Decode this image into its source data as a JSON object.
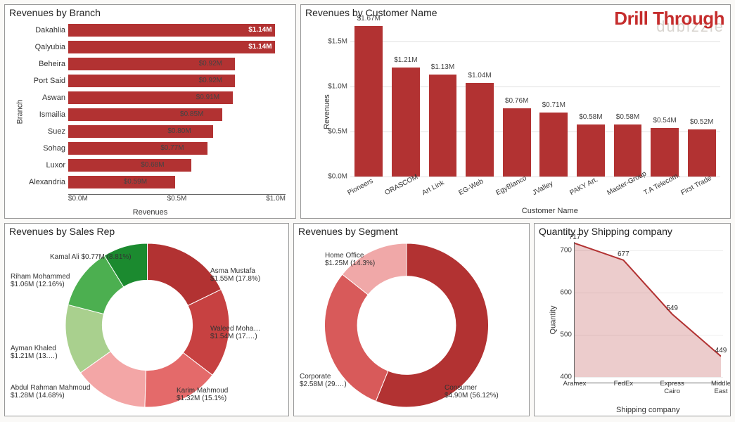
{
  "watermark": {
    "main": "Drill Through",
    "sub": "dubizzle"
  },
  "colors": {
    "bar": "#b23232",
    "panel_border": "#999999",
    "grid": "#e0e0e0",
    "axis": "#666666",
    "text": "#333333"
  },
  "branch_chart": {
    "type": "bar-horizontal",
    "title": "Revenues by Branch",
    "xlabel": "Revenues",
    "ylabel": "Branch",
    "bar_color": "#b23232",
    "value_max_for_scale": 1.2,
    "xticks": [
      "$0.0M",
      "$0.5M",
      "$1.0M"
    ],
    "items": [
      {
        "cat": "Dakahlia",
        "val": 1.14,
        "label": "$1.14M",
        "inside": true
      },
      {
        "cat": "Qalyubia",
        "val": 1.14,
        "label": "$1.14M",
        "inside": true
      },
      {
        "cat": "Beheira",
        "val": 0.92,
        "label": "$0.92M",
        "inside": false
      },
      {
        "cat": "Port Said",
        "val": 0.92,
        "label": "$0.92M",
        "inside": false
      },
      {
        "cat": "Aswan",
        "val": 0.91,
        "label": "$0.91M",
        "inside": false
      },
      {
        "cat": "Ismailia",
        "val": 0.85,
        "label": "$0.85M",
        "inside": false
      },
      {
        "cat": "Suez",
        "val": 0.8,
        "label": "$0.80M",
        "inside": false
      },
      {
        "cat": "Sohag",
        "val": 0.77,
        "label": "$0.77M",
        "inside": false
      },
      {
        "cat": "Luxor",
        "val": 0.68,
        "label": "$0.68M",
        "inside": false
      },
      {
        "cat": "Alexandria",
        "val": 0.59,
        "label": "$0.59M",
        "inside": false
      }
    ]
  },
  "customer_chart": {
    "type": "bar-vertical",
    "title": "Revenues by Customer Name",
    "xlabel": "Customer Name",
    "ylabel": "Revenues",
    "bar_color": "#b23232",
    "ylim": [
      0,
      1.7
    ],
    "yticks": [
      {
        "v": 0.0,
        "label": "$0.0M"
      },
      {
        "v": 0.5,
        "label": "$0.5M"
      },
      {
        "v": 1.0,
        "label": "$1.0M"
      },
      {
        "v": 1.5,
        "label": "$1.5M"
      }
    ],
    "items": [
      {
        "cat": "Pioneers",
        "val": 1.67,
        "label": "$1.67M"
      },
      {
        "cat": "ORASCOM",
        "val": 1.21,
        "label": "$1.21M"
      },
      {
        "cat": "Art Link",
        "val": 1.13,
        "label": "$1.13M"
      },
      {
        "cat": "EG-Web",
        "val": 1.04,
        "label": "$1.04M"
      },
      {
        "cat": "EgyBlanco",
        "val": 0.76,
        "label": "$0.76M"
      },
      {
        "cat": "JValley",
        "val": 0.71,
        "label": "$0.71M"
      },
      {
        "cat": "PAKY Art.",
        "val": 0.58,
        "label": "$0.58M"
      },
      {
        "cat": "Master-Group",
        "val": 0.58,
        "label": "$0.58M"
      },
      {
        "cat": "T.A Telecom.",
        "val": 0.54,
        "label": "$0.54M"
      },
      {
        "cat": "First Trade",
        "val": 0.52,
        "label": "$0.52M"
      }
    ]
  },
  "salesrep_chart": {
    "type": "donut",
    "title": "Revenues by Sales Rep",
    "inner_radius_pct": 55,
    "slices": [
      {
        "label": "Asma Mustafa",
        "text": "Asma Mustafa\n$1.55M (17.8%)",
        "pct": 17.8,
        "color": "#b23232"
      },
      {
        "label": "Waleed Moha…",
        "text": "Waleed Moha…\n$1.54M (17.…)",
        "pct": 17.6,
        "color": "#c74141"
      },
      {
        "label": "Karim Mahmoud",
        "text": "Karim Mahmoud\n$1.32M (15.1%)",
        "pct": 15.1,
        "color": "#e46a6a"
      },
      {
        "label": "Abdul Rahman Mahmoud",
        "text": "Abdul Rahman Mahmoud\n$1.28M (14.68%)",
        "pct": 14.68,
        "color": "#f3a6a6"
      },
      {
        "label": "Ayman Khaled",
        "text": "Ayman Khaled\n$1.21M (13.…)",
        "pct": 13.85,
        "color": "#a9d08e"
      },
      {
        "label": "Riham Mohammed",
        "text": "Riham Mohammed\n$1.06M (12.16%)",
        "pct": 12.16,
        "color": "#4caf50"
      },
      {
        "label": "Kamal Ali",
        "text": "Kamal Ali $0.77M (8.81%)",
        "pct": 8.81,
        "color": "#1b8a2f"
      }
    ]
  },
  "segment_chart": {
    "type": "donut",
    "title": "Revenues by Segment",
    "inner_radius_pct": 60,
    "slices": [
      {
        "label": "Consumer",
        "text": "Consumer\n$4.90M (56.12%)",
        "pct": 56.12,
        "color": "#b23232"
      },
      {
        "label": "Corporate",
        "text": "Corporate\n$2.58M (29.…)",
        "pct": 29.55,
        "color": "#d85a5a"
      },
      {
        "label": "Home Office",
        "text": "Home Office\n$1.25M (14.3%)",
        "pct": 14.33,
        "color": "#f0a8a8"
      }
    ]
  },
  "shipping_chart": {
    "type": "area",
    "title": "Quantity by Shipping company",
    "xlabel": "Shipping company",
    "ylabel": "Quantity",
    "line_color": "#b23232",
    "fill_color": "rgba(178,50,50,0.25)",
    "ylim": [
      400,
      720
    ],
    "yticks": [
      400,
      500,
      600,
      700
    ],
    "points": [
      {
        "cat": "Aramex",
        "val": 717,
        "label": "717"
      },
      {
        "cat": "FedEx",
        "val": 677,
        "label": "677"
      },
      {
        "cat": "Express Cairo",
        "val": 549,
        "label": "549"
      },
      {
        "cat": "Middle East",
        "val": 449,
        "label": "449"
      }
    ]
  }
}
